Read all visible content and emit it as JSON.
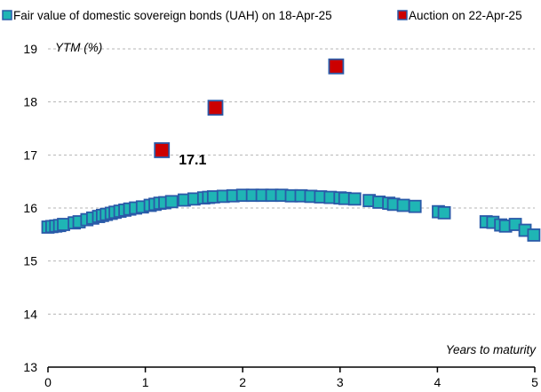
{
  "chart_data": {
    "type": "scatter",
    "x_label": "Years to maturity",
    "y_label": "YTM (%)",
    "x_range": [
      0,
      5
    ],
    "y_range": [
      13,
      19
    ],
    "x_ticks": [
      "0",
      "1",
      "2",
      "3",
      "4",
      "5"
    ],
    "y_ticks": [
      "13",
      "14",
      "15",
      "16",
      "17",
      "18",
      "19"
    ],
    "grid": "horizontal dashed",
    "legend_position": "top",
    "series": [
      {
        "name": "Fair value of domestic sovereign bonds (UAH) on 18-Apr-25",
        "color": "#1fb5b5",
        "border": "#2a5aa8",
        "points": [
          [
            0.0,
            15.64
          ],
          [
            0.04,
            15.65
          ],
          [
            0.08,
            15.66
          ],
          [
            0.12,
            15.67
          ],
          [
            0.16,
            15.69
          ],
          [
            0.27,
            15.72
          ],
          [
            0.32,
            15.74
          ],
          [
            0.4,
            15.78
          ],
          [
            0.46,
            15.81
          ],
          [
            0.52,
            15.84
          ],
          [
            0.56,
            15.86
          ],
          [
            0.6,
            15.88
          ],
          [
            0.65,
            15.9
          ],
          [
            0.69,
            15.92
          ],
          [
            0.74,
            15.94
          ],
          [
            0.79,
            15.96
          ],
          [
            0.84,
            15.98
          ],
          [
            0.9,
            16.0
          ],
          [
            0.97,
            16.02
          ],
          [
            1.05,
            16.05
          ],
          [
            1.1,
            16.07
          ],
          [
            1.15,
            16.09
          ],
          [
            1.2,
            16.1
          ],
          [
            1.27,
            16.12
          ],
          [
            1.4,
            16.15
          ],
          [
            1.5,
            16.17
          ],
          [
            1.6,
            16.19
          ],
          [
            1.65,
            16.2
          ],
          [
            1.7,
            16.21
          ],
          [
            1.8,
            16.22
          ],
          [
            1.9,
            16.23
          ],
          [
            2.0,
            16.24
          ],
          [
            2.1,
            16.24
          ],
          [
            2.2,
            16.24
          ],
          [
            2.3,
            16.24
          ],
          [
            2.4,
            16.24
          ],
          [
            2.5,
            16.23
          ],
          [
            2.6,
            16.23
          ],
          [
            2.7,
            16.22
          ],
          [
            2.8,
            16.21
          ],
          [
            2.9,
            16.2
          ],
          [
            3.0,
            16.19
          ],
          [
            3.05,
            16.18
          ],
          [
            3.15,
            16.17
          ],
          [
            3.3,
            16.14
          ],
          [
            3.4,
            16.11
          ],
          [
            3.5,
            16.09
          ],
          [
            3.55,
            16.07
          ],
          [
            3.65,
            16.05
          ],
          [
            3.77,
            16.03
          ],
          [
            4.01,
            15.93
          ],
          [
            4.07,
            15.91
          ],
          [
            4.5,
            15.74
          ],
          [
            4.57,
            15.73
          ],
          [
            4.65,
            15.68
          ],
          [
            4.7,
            15.66
          ],
          [
            4.8,
            15.69
          ],
          [
            4.9,
            15.58
          ],
          [
            4.99,
            15.49
          ]
        ]
      },
      {
        "name": "Auction on 22-Apr-25",
        "color": "#cc0000",
        "border": "#2a5aa8",
        "points": [
          [
            1.17,
            17.09
          ],
          [
            1.72,
            17.89
          ],
          [
            2.96,
            18.67
          ]
        ],
        "annotation": {
          "x": 1.17,
          "y": 17.09,
          "label": "17.1"
        }
      }
    ]
  }
}
